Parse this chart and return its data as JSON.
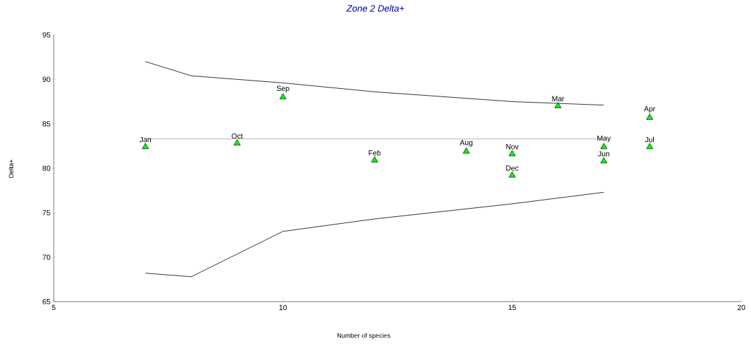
{
  "chart_data": {
    "type": "scatter",
    "title": "Zone 2 Delta+",
    "xlabel": "Number of species",
    "ylabel": "Delta+",
    "xlim": [
      5,
      20
    ],
    "ylim": [
      65,
      95
    ],
    "xticks": [
      5,
      10,
      15,
      20
    ],
    "yticks": [
      65,
      70,
      75,
      80,
      85,
      90,
      95
    ],
    "grid": false,
    "marker": "triangle",
    "series": [
      {
        "type": "line",
        "color": "#000000",
        "marker": "none",
        "x": [
          7,
          8,
          10,
          12,
          15,
          17
        ],
        "values": [
          92.0,
          90.4,
          89.6,
          88.6,
          87.5,
          87.1
        ]
      },
      {
        "type": "line",
        "color": "#000000",
        "marker": "none",
        "x": [
          7,
          8,
          10,
          12,
          15,
          17
        ],
        "values": [
          68.2,
          67.8,
          72.9,
          74.3,
          76.0,
          77.3
        ]
      },
      {
        "type": "line",
        "color": "#a0a0a0",
        "marker": "none",
        "x": [
          7,
          17
        ],
        "values": [
          83.3,
          83.3
        ]
      },
      {
        "color": "#00ff00",
        "x": [
          7,
          9,
          10,
          12,
          14,
          15,
          15,
          16,
          17,
          17,
          18,
          18
        ],
        "values": [
          82.4,
          82.8,
          88.0,
          80.9,
          81.9,
          81.6,
          79.2,
          87.0,
          82.4,
          80.8,
          85.7,
          82.4
        ]
      }
    ],
    "annotations": [
      {
        "text": "Jan",
        "x": 7,
        "y": 82.4
      },
      {
        "text": "Oct",
        "x": 9,
        "y": 82.8
      },
      {
        "text": "Sep",
        "x": 10,
        "y": 88.0
      },
      {
        "text": "Feb",
        "x": 12,
        "y": 80.9
      },
      {
        "text": "Aug",
        "x": 14,
        "y": 81.9
      },
      {
        "text": "Nov",
        "x": 15,
        "y": 81.6
      },
      {
        "text": "Dec",
        "x": 15,
        "y": 79.2
      },
      {
        "text": "Mar",
        "x": 16,
        "y": 87.0
      },
      {
        "text": "May",
        "x": 17,
        "y": 82.4
      },
      {
        "text": "Jun",
        "x": 17,
        "y": 80.8
      },
      {
        "text": "Apr",
        "x": 18,
        "y": 85.7
      },
      {
        "text": "Jul",
        "x": 18,
        "y": 82.4
      }
    ]
  }
}
